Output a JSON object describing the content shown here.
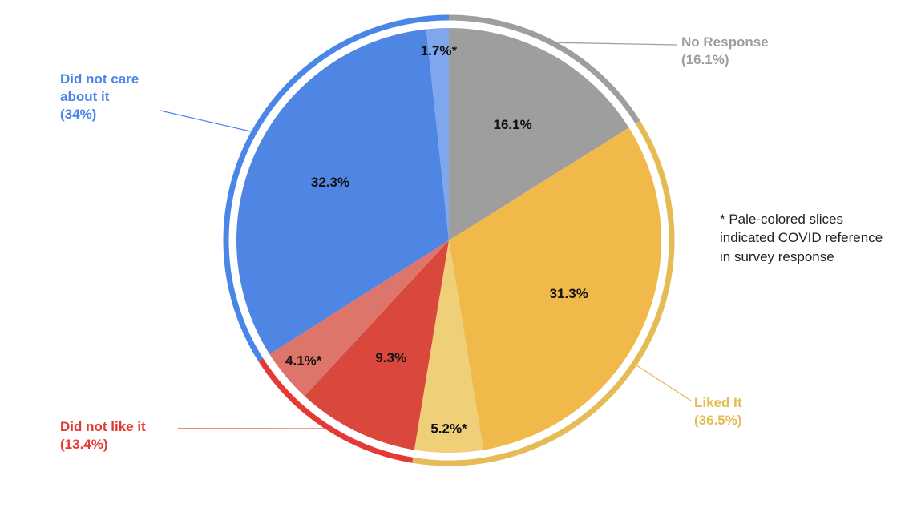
{
  "chart_data": {
    "type": "pie",
    "slices": {
      "values": [
        16.1,
        31.3,
        5.2,
        9.3,
        4.1,
        32.3,
        1.7
      ],
      "value_labels": [
        "16.1%",
        "31.3%",
        "5.2%*",
        "9.3%",
        "4.1%*",
        "32.3%",
        "1.7%*"
      ],
      "colors": [
        "#9e9e9e",
        "#f0b94a",
        "#efcf78",
        "#d9473d",
        "#dd756b",
        "#4f86e4",
        "#7fa7ee"
      ]
    },
    "groups": [
      {
        "name": "No Response",
        "value": 16.1,
        "value_label": "(16.1%)",
        "color": "#9e9e9e"
      },
      {
        "name": "Liked It",
        "value": 36.5,
        "value_label": "(36.5%)",
        "color": "#e6bb55"
      },
      {
        "name": "Did not like it",
        "value": 13.4,
        "value_label": "(13.4%)",
        "color": "#e53935"
      },
      {
        "name": "Did not care about it",
        "value": 34,
        "value_label": "(34%)",
        "color": "#4a86e8"
      }
    ],
    "note": "* Pale-colored slices indicated COVID reference in survey response"
  }
}
